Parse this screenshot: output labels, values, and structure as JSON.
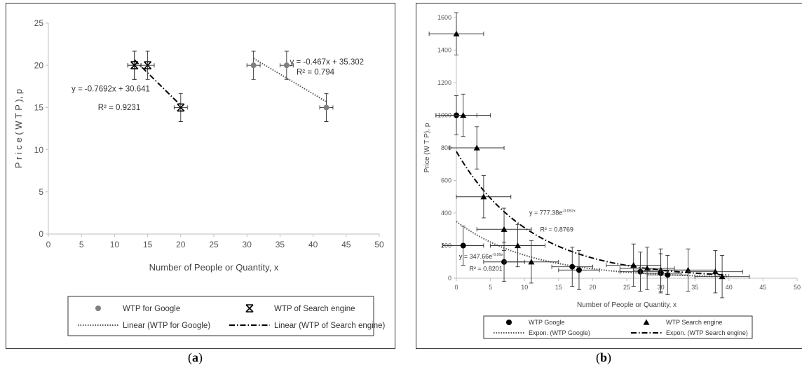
{
  "chart_data": [
    {
      "id": "a",
      "type": "scatter",
      "caption": "a",
      "xlabel": "Number  of People or Quantity, x",
      "ylabel": "P r i c e ( W T P ),  p",
      "xlim": [
        0,
        50
      ],
      "ylim": [
        0,
        25
      ],
      "xticks": [
        0,
        5,
        10,
        15,
        20,
        25,
        30,
        35,
        40,
        45,
        50
      ],
      "yticks": [
        0,
        5,
        10,
        15,
        20,
        25
      ],
      "grid": false,
      "series": [
        {
          "name": "WTP for Google",
          "marker": "circle",
          "color": "#7f7f7f",
          "x": [
            31,
            36,
            42
          ],
          "y": [
            20,
            20,
            15
          ],
          "xerr": 1,
          "yerr": 1.67
        },
        {
          "name": "WTP of Search engine",
          "marker": "star",
          "color": "#000000",
          "x": [
            13,
            13,
            15,
            20
          ],
          "y": [
            20,
            20,
            20,
            15
          ],
          "xerr": 1,
          "yerr": 1.67
        }
      ],
      "trendlines": [
        {
          "name": "Linear (WTP for Google)",
          "kind": "linear",
          "slope": -0.467,
          "intercept": 35.302,
          "x_range": [
            31,
            42
          ],
          "style": "dotted"
        },
        {
          "name": "Linear (WTP of Search engine)",
          "kind": "linear",
          "slope": -0.7692,
          "intercept": 30.641,
          "x_range": [
            13,
            20
          ],
          "style": "dashdot"
        }
      ],
      "annotations": [
        {
          "text": "y = -0.467x + 35.302",
          "x": 36.5,
          "y": 20.1
        },
        {
          "text": "R² = 0.794",
          "x": 37.5,
          "y": 18.9
        },
        {
          "text": "y = -0.7692x + 30.641",
          "x": 3.5,
          "y": 16.9
        },
        {
          "text": "R² = 0.9231",
          "x": 7.5,
          "y": 14.7
        }
      ],
      "legend": "bottom"
    },
    {
      "id": "b",
      "type": "scatter",
      "caption": "b",
      "xlabel": "Number of People or Quantity, x",
      "ylabel": "Price (W T P),  p",
      "xlim": [
        0,
        50
      ],
      "ylim": [
        0,
        1600
      ],
      "xticks": [
        0,
        5,
        10,
        15,
        20,
        25,
        30,
        35,
        40,
        45,
        50
      ],
      "yticks": [
        0,
        200,
        400,
        600,
        800,
        1000,
        1200,
        1400,
        1600
      ],
      "grid": false,
      "series": [
        {
          "name": "WTP Google",
          "marker": "circle",
          "color": "#000000",
          "x": [
            0,
            1,
            7,
            17,
            18,
            27,
            30,
            31
          ],
          "y": [
            1000,
            200,
            100,
            70,
            50,
            40,
            30,
            20
          ],
          "xerr": 3,
          "yerr": 120
        },
        {
          "name": "WTP Search engine",
          "marker": "triangle",
          "color": "#000000",
          "x": [
            0,
            1,
            3,
            4,
            7,
            9,
            11,
            26,
            28,
            30,
            34,
            38,
            39
          ],
          "y": [
            1500,
            1000,
            800,
            500,
            300,
            200,
            100,
            80,
            60,
            50,
            50,
            40,
            10
          ],
          "xerr": 4,
          "yerr": 130
        }
      ],
      "trendlines": [
        {
          "name": "Expon. (WTP Google)",
          "kind": "exponential",
          "a": 347.66,
          "b": -0.09,
          "x_range": [
            0,
            40
          ],
          "style": "dotted"
        },
        {
          "name": "Expon. (WTP Search engine)",
          "kind": "exponential",
          "a": 777.38,
          "b": -0.092,
          "x_range": [
            0,
            40
          ],
          "style": "dashdot"
        }
      ],
      "annotations": [
        {
          "text": "y = 777.38e",
          "sup": "-0.092x",
          "x": 10.7,
          "y": 390
        },
        {
          "text": "R² = 0.8769",
          "x": 12.3,
          "y": 285
        },
        {
          "text": "y = 347.66e",
          "sup": "-0.09x",
          "x": 0.4,
          "y": 120
        },
        {
          "text": "R² = 0.8201",
          "x": 1.9,
          "y": 45
        }
      ],
      "legend": "bottom"
    }
  ]
}
